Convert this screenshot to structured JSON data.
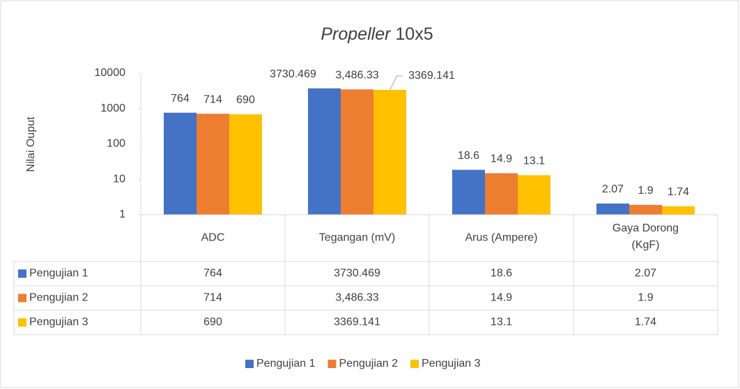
{
  "chart_data": {
    "type": "bar",
    "title": [
      "Propeller",
      "10x5"
    ],
    "y_label": "Nilai Ouput",
    "categories": [
      "ADC",
      "Tegangan (mV)",
      "Arus (Ampere)",
      "Gaya Dorong (KgF)"
    ],
    "series": [
      {
        "name": "Pengujian 1",
        "color": "#4472c4",
        "values": [
          764,
          3730.469,
          18.6,
          2.07
        ]
      },
      {
        "name": "Pengujian 2",
        "color": "#ed7d31",
        "values": [
          714,
          3486.33,
          14.9,
          1.9
        ],
        "value_labels": [
          "714",
          "3,486.33",
          "14.9",
          "1.9"
        ]
      },
      {
        "name": "Pengujian 3",
        "color": "#ffc000",
        "values": [
          690,
          3369.141,
          13.1,
          1.74
        ]
      }
    ],
    "ylim": [
      1,
      10000
    ],
    "yticks": [
      1,
      10,
      100,
      1000,
      10000
    ],
    "log_scale": true,
    "data_table": true,
    "legend": "bottom"
  }
}
